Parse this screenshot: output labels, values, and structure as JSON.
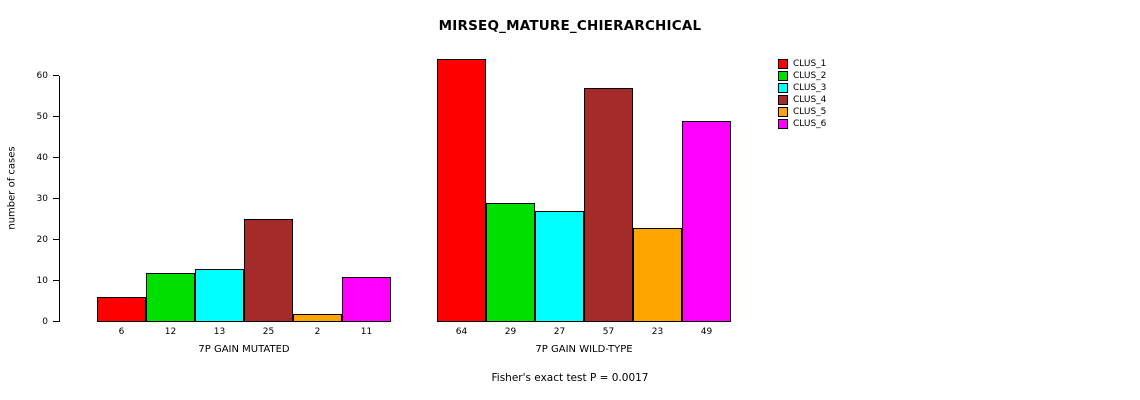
{
  "chart_data": {
    "type": "bar",
    "title": "MIRSEQ_MATURE_CHIERARCHICAL",
    "ylabel": "number of cases",
    "xlabel": "",
    "ylim": [
      0,
      65
    ],
    "yticks": [
      0,
      10,
      20,
      30,
      40,
      50,
      60
    ],
    "grid": false,
    "legend_position": "right",
    "categories": [
      "7P GAIN MUTATED",
      "7P GAIN WILD-TYPE"
    ],
    "groups": [
      {
        "label": "7P GAIN MUTATED",
        "values": [
          6,
          12,
          13,
          25,
          2,
          11
        ]
      },
      {
        "label": "7P GAIN WILD-TYPE",
        "values": [
          64,
          29,
          27,
          57,
          23,
          49
        ]
      }
    ],
    "series": [
      {
        "name": "CLUS_1",
        "color": "#FF0000",
        "values": [
          6,
          64
        ]
      },
      {
        "name": "CLUS_2",
        "color": "#00E000",
        "values": [
          12,
          29
        ]
      },
      {
        "name": "CLUS_3",
        "color": "#00FFFF",
        "values": [
          13,
          27
        ]
      },
      {
        "name": "CLUS_4",
        "color": "#A52A2A",
        "values": [
          25,
          57
        ]
      },
      {
        "name": "CLUS_5",
        "color": "#FFA500",
        "values": [
          2,
          23
        ]
      },
      {
        "name": "CLUS_6",
        "color": "#FF00FF",
        "values": [
          11,
          49
        ]
      }
    ],
    "annotation": "Fisher's exact test P = 0.0017"
  }
}
